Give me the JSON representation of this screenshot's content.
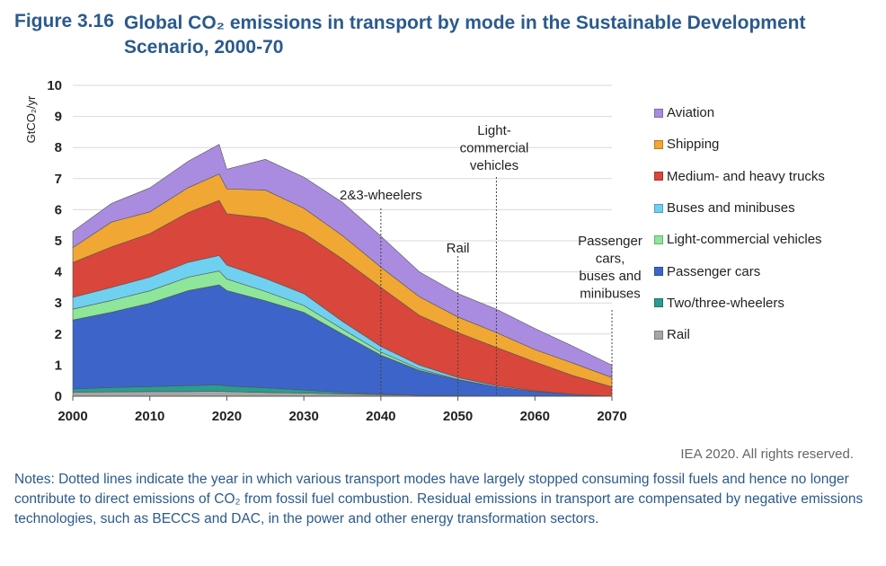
{
  "figure": {
    "number": "Figure 3.16",
    "title": "Global CO₂ emissions in transport by mode in the Sustainable Development Scenario, 2000-70"
  },
  "credit": "IEA 2020. All rights reserved.",
  "notes": "Notes: Dotted lines indicate the year in which various transport modes have largely stopped consuming fossil fuels and hence no longer contribute to direct emissions of CO₂ from fossil fuel combustion. Residual emissions in transport are compensated by negative emissions technologies, such as BECCS and DAC, in the power and other energy transformation sectors.",
  "chart_data": {
    "type": "area",
    "stacked": true,
    "ylabel": "GtCO₂/yr",
    "xlabel": "",
    "ylim": [
      0,
      10
    ],
    "xlim": [
      2000,
      2070
    ],
    "yticks": [
      0,
      1,
      2,
      3,
      4,
      5,
      6,
      7,
      8,
      9,
      10
    ],
    "xticks": [
      2000,
      2010,
      2020,
      2030,
      2040,
      2050,
      2060,
      2070
    ],
    "grid": "horizontal",
    "legend_position": "right",
    "x": [
      2000,
      2005,
      2010,
      2015,
      2019,
      2020,
      2025,
      2030,
      2035,
      2040,
      2045,
      2050,
      2055,
      2060,
      2065,
      2070
    ],
    "series": [
      {
        "name": "Rail",
        "color": "#a6a6a6",
        "values": [
          0.13,
          0.14,
          0.15,
          0.15,
          0.16,
          0.15,
          0.12,
          0.1,
          0.07,
          0.05,
          0.03,
          0.02,
          0.01,
          0.01,
          0.0,
          0.0
        ]
      },
      {
        "name": "Two/three-wheelers",
        "color": "#2a9d8f",
        "values": [
          0.1,
          0.14,
          0.16,
          0.19,
          0.2,
          0.18,
          0.15,
          0.1,
          0.05,
          0.02,
          0.0,
          0.0,
          0.0,
          0.0,
          0.0,
          0.0
        ]
      },
      {
        "name": "Passenger cars",
        "color": "#3d64c8",
        "values": [
          2.22,
          2.42,
          2.68,
          3.06,
          3.22,
          3.07,
          2.8,
          2.5,
          1.88,
          1.25,
          0.8,
          0.5,
          0.29,
          0.14,
          0.06,
          0.0
        ]
      },
      {
        "name": "Light-commercial vehicles",
        "color": "#8ee69a",
        "values": [
          0.35,
          0.38,
          0.4,
          0.43,
          0.45,
          0.37,
          0.3,
          0.22,
          0.16,
          0.1,
          0.05,
          0.02,
          0.0,
          0.0,
          0.0,
          0.0
        ]
      },
      {
        "name": "Buses and minibuses",
        "color": "#6fd0f0",
        "values": [
          0.38,
          0.42,
          0.44,
          0.48,
          0.5,
          0.45,
          0.42,
          0.38,
          0.25,
          0.18,
          0.12,
          0.06,
          0.04,
          0.02,
          0.0,
          0.0
        ]
      },
      {
        "name": "Medium- and heavy trucks",
        "color": "#d9463b",
        "values": [
          1.12,
          1.3,
          1.4,
          1.6,
          1.77,
          1.65,
          1.94,
          1.95,
          2.01,
          1.9,
          1.6,
          1.45,
          1.23,
          0.93,
          0.6,
          0.3
        ]
      },
      {
        "name": "Shipping",
        "color": "#f0a733",
        "values": [
          0.48,
          0.8,
          0.7,
          0.8,
          0.85,
          0.8,
          0.9,
          0.8,
          0.75,
          0.65,
          0.6,
          0.5,
          0.48,
          0.4,
          0.4,
          0.3
        ]
      },
      {
        "name": "Aviation",
        "color": "#a98ce0",
        "values": [
          0.52,
          0.6,
          0.77,
          0.85,
          0.95,
          0.63,
          0.99,
          1.0,
          1.07,
          1.0,
          0.8,
          0.75,
          0.75,
          0.68,
          0.54,
          0.4
        ]
      }
    ],
    "annotations": [
      {
        "x": 2040,
        "label": [
          "2&3-wheelers"
        ]
      },
      {
        "x": 2050,
        "label": [
          "Rail"
        ]
      },
      {
        "x": 2055,
        "label": [
          "Light-",
          "commercial",
          "vehicles"
        ]
      },
      {
        "x": 2070,
        "label": [
          "Passenger",
          "cars,",
          "buses and",
          "minibuses"
        ]
      }
    ]
  }
}
